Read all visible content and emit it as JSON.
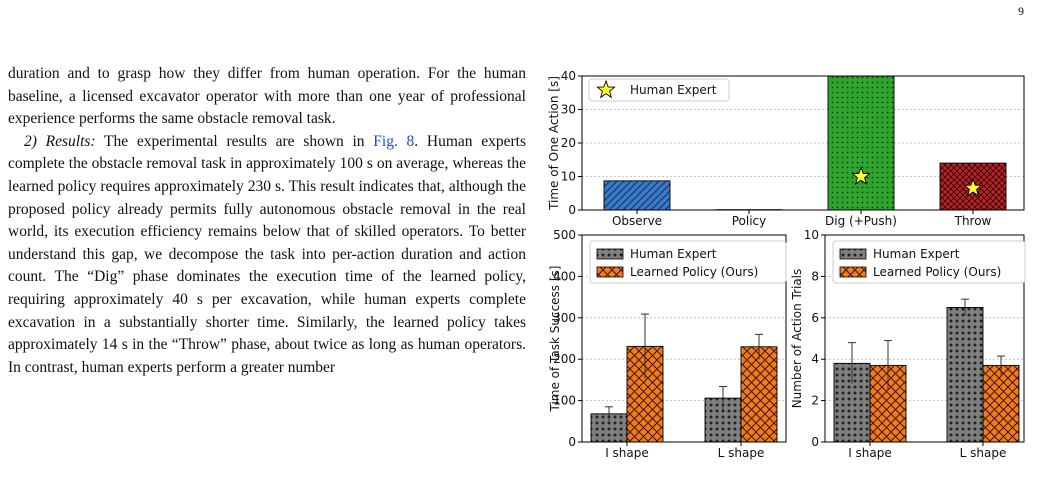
{
  "page_number": "9",
  "body": {
    "p1": "duration and to grasp how they differ from human operation. For the human baseline, a licensed excavator operator with more than one year of professional experience performs the same obstacle removal task.",
    "p2_head": "2) Results:",
    "p2_a": " The experimental results are shown in ",
    "p2_link": "Fig. 8",
    "p2_b": ". Human experts complete the obstacle removal task in approximately 100 s on average, whereas the learned policy requires approximately 230 s. This result indicates that, although the proposed policy already permits fully autonomous obstacle removal in the real world, its execution efficiency remains below that of skilled operators. To better understand this gap, we decompose the task into per-action duration and action count. The “Dig” phase dominates the execution time of the learned policy, requiring approximately 40 s per excavation, while human experts complete excavation in a substantially shorter time. Similarly, the learned policy takes approximately 14 s in the “Throw” phase, about twice as long as human operators. In contrast, human experts perform a greater number"
  },
  "colors": {
    "observe": "#3a78c9",
    "dig": "#2fa52f",
    "throw": "#b3242a",
    "human": "#808080",
    "learned": "#f47a1f",
    "star": "#ffff33"
  },
  "chart_data": [
    {
      "type": "bar",
      "categories": [
        "Observe",
        "Policy",
        "Dig (+Push)",
        "Throw"
      ],
      "values": [
        8.7,
        0.1,
        40,
        14
      ],
      "series": [
        {
          "name": "Human Expert",
          "values": [
            null,
            null,
            10,
            6.5
          ]
        }
      ],
      "title": "",
      "xlabel": "",
      "ylabel": "Time of One Action [s]",
      "ylim": [
        0,
        40
      ],
      "yticks": [
        "0",
        "10",
        "20",
        "30",
        "40"
      ],
      "grid": true,
      "legend": {
        "placement": "top-left",
        "entries": [
          "Human Expert"
        ]
      }
    },
    {
      "type": "bar",
      "categories": [
        "I shape",
        "L shape"
      ],
      "series": [
        {
          "name": "Human Expert",
          "values": [
            68,
            106
          ],
          "errors": [
            17,
            28
          ]
        },
        {
          "name": "Learned Policy (Ours)",
          "values": [
            231,
            230
          ],
          "errors": [
            78,
            30
          ]
        }
      ],
      "title": "",
      "xlabel": "",
      "ylabel": "Time of Task Success [s]",
      "ylim": [
        0,
        500
      ],
      "yticks": [
        "0",
        "100",
        "200",
        "300",
        "400",
        "500"
      ],
      "grid": true,
      "legend": {
        "placement": "top-left",
        "entries": [
          "Human Expert",
          "Learned Policy (Ours)"
        ]
      }
    },
    {
      "type": "bar",
      "categories": [
        "I shape",
        "L shape"
      ],
      "series": [
        {
          "name": "Human Expert",
          "values": [
            3.8,
            6.5
          ],
          "errors": [
            1.0,
            0.4
          ]
        },
        {
          "name": "Learned Policy (Ours)",
          "values": [
            3.7,
            3.7
          ],
          "errors": [
            1.2,
            0.45
          ]
        }
      ],
      "title": "",
      "xlabel": "",
      "ylabel": "Number of Action Trials",
      "ylim": [
        0,
        10
      ],
      "yticks": [
        "0",
        "2",
        "4",
        "6",
        "8",
        "10"
      ],
      "grid": true,
      "legend": {
        "placement": "top-left",
        "entries": [
          "Human Expert",
          "Learned Policy (Ours)"
        ]
      }
    }
  ]
}
